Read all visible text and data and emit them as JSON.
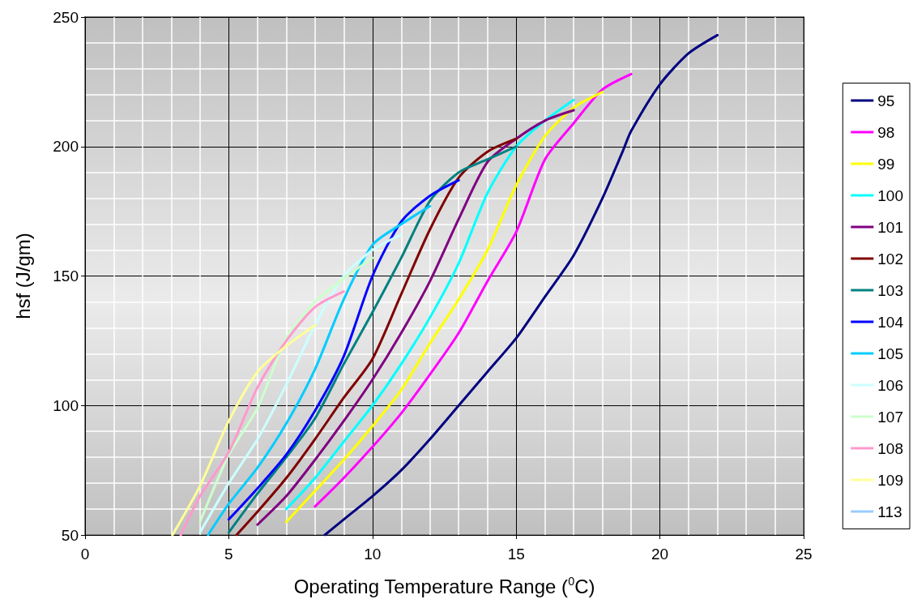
{
  "chart_data": {
    "type": "line",
    "xlabel": "Operating Temperature Range ($^{0}$C)",
    "ylabel": "hsf (J/gm)",
    "xlim": [
      0,
      25
    ],
    "xticks": [
      0,
      5,
      10,
      15,
      20,
      25
    ],
    "ylim": [
      50,
      250
    ],
    "yticks": [
      50,
      100,
      150,
      200,
      250
    ],
    "grid": true,
    "legend": "right",
    "series": [
      {
        "name": "95",
        "color": "#000080",
        "x": [
          8.34,
          9,
          10,
          11,
          12,
          13,
          14,
          15,
          16,
          17,
          18,
          18.7,
          19,
          20,
          21,
          22
        ],
        "values": [
          50,
          56,
          65,
          75,
          87,
          100,
          113,
          126,
          142,
          158,
          180,
          198,
          206,
          224,
          236,
          243
        ]
      },
      {
        "name": "98",
        "color": "#ff00ff",
        "x": [
          8,
          9,
          10,
          11,
          12,
          13,
          14,
          15,
          16,
          17,
          18,
          19
        ],
        "values": [
          61,
          72,
          84,
          97,
          112,
          128,
          148,
          167,
          195,
          209,
          222,
          228
        ]
      },
      {
        "name": "99",
        "color": "#ffff00",
        "x": [
          7,
          8,
          9,
          10,
          11,
          12,
          13,
          14,
          15,
          16,
          17,
          18
        ],
        "values": [
          55,
          67,
          79,
          92,
          106,
          124,
          141,
          160,
          185,
          204,
          215,
          221
        ]
      },
      {
        "name": "100",
        "color": "#00ffff",
        "x": [
          7,
          8,
          9,
          10,
          11,
          12,
          13,
          14,
          15,
          16,
          17
        ],
        "values": [
          60,
          72,
          86,
          100,
          116,
          134,
          155,
          182,
          200,
          210,
          218
        ]
      },
      {
        "name": "101",
        "color": "#800080",
        "x": [
          6,
          7,
          8,
          9,
          10,
          11,
          12,
          13,
          14,
          15,
          16,
          17
        ],
        "values": [
          54,
          65,
          79,
          94,
          110,
          128,
          148,
          172,
          194,
          203,
          210,
          214
        ]
      },
      {
        "name": "102",
        "color": "#800000",
        "x": [
          5.27,
          6,
          7,
          8,
          9,
          10,
          11,
          12,
          13,
          14,
          15
        ],
        "values": [
          50,
          59,
          72,
          87,
          103,
          118,
          143,
          168,
          188,
          198,
          203
        ]
      },
      {
        "name": "103",
        "color": "#008080",
        "x": [
          5,
          6,
          7,
          8,
          9,
          10,
          11,
          12,
          13,
          14,
          15
        ],
        "values": [
          51,
          66,
          80,
          95,
          116,
          136,
          157,
          179,
          190,
          195,
          200
        ]
      },
      {
        "name": "104",
        "color": "#0000ff",
        "x": [
          5,
          6,
          7,
          8,
          9,
          10,
          11,
          12,
          13
        ],
        "values": [
          56,
          68,
          81,
          98,
          119,
          150,
          171,
          181,
          187
        ]
      },
      {
        "name": "105",
        "color": "#00ccff",
        "x": [
          4.28,
          5,
          6,
          7,
          8,
          9,
          10,
          11,
          12
        ],
        "values": [
          50,
          62,
          76,
          93,
          114,
          141,
          162,
          170,
          177
        ]
      },
      {
        "name": "106",
        "color": "#ccffff",
        "x": [
          4,
          5,
          6,
          7,
          8,
          9,
          10,
          11
        ],
        "values": [
          51,
          70,
          87,
          108,
          131,
          150,
          160,
          166
        ]
      },
      {
        "name": "107",
        "color": "#ccffcc",
        "x": [
          4,
          5,
          6,
          7,
          8,
          9,
          10
        ],
        "values": [
          55,
          81,
          99,
          126,
          140,
          149,
          157
        ]
      },
      {
        "name": "108",
        "color": "#ff99cc",
        "x": [
          3.33,
          4,
          5,
          6,
          7,
          8,
          9
        ],
        "values": [
          50,
          65,
          82,
          107,
          125,
          138,
          144
        ]
      },
      {
        "name": "109",
        "color": "#ffff99",
        "x": [
          3.04,
          4,
          5,
          6,
          7,
          8
        ],
        "values": [
          50,
          69,
          94,
          113,
          123,
          131
        ]
      },
      {
        "name": "113",
        "color": "#99ccff"
      }
    ]
  }
}
